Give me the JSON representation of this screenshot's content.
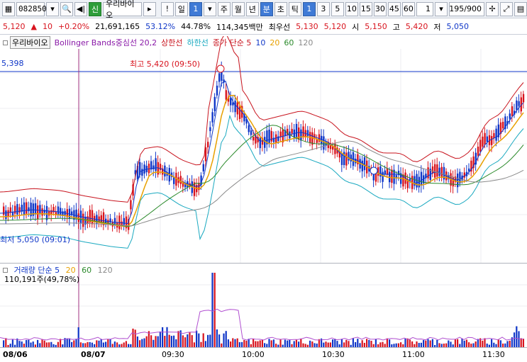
{
  "toolbar": {
    "code": "082850",
    "badge": "신",
    "name": "우리바이오",
    "period_buttons": [
      "일",
      "1",
      "주",
      "월",
      "년",
      "분",
      "초",
      "틱"
    ],
    "interval_buttons": [
      "1",
      "3",
      "5",
      "10",
      "15",
      "30",
      "45",
      "60"
    ],
    "count_value": "1",
    "page_value": "195/900"
  },
  "quote": {
    "price": "5,120",
    "change_icon": "up-triangle",
    "change": "10",
    "rate": "+0.20%",
    "volume": "21,691,165",
    "pct1": "53.12%",
    "pct2": "44.78%",
    "amount": "114,345백만",
    "best_label": "최우선",
    "ask": "5,130",
    "bid": "5,120",
    "open_label": "시",
    "open": "5,150",
    "high_label": "고",
    "high": "5,420",
    "low_label": "저",
    "low": "5,050"
  },
  "legend": {
    "name": "우리바이오",
    "bb": "Bollinger Bands중심선 20,2",
    "upper": "상한선",
    "lower": "하한선",
    "close_ma": "종가 단순 5",
    "p10": "10",
    "p20": "20",
    "p60": "60",
    "p120": "120"
  },
  "price_level": "5,398",
  "high_annotation": "최고 5,420 (09:50)",
  "low_annotation": "최저 5,050 (09:01)",
  "vol_legend": {
    "title": "거래량 단순 5",
    "p20": "20",
    "p60": "60",
    "p120": "120",
    "value": "110,191주(49,78%)"
  },
  "time_axis": [
    "08/06",
    "08/07",
    "09:30",
    "10:00",
    "10:30",
    "11:00",
    "11:30"
  ],
  "colors": {
    "up": "#d8141e",
    "down": "#1037c8",
    "ma5": "#d8141e",
    "ma10": "#1037c8",
    "ma20": "#e8a000",
    "ma60": "#2b8a2b",
    "ma120": "#8a8a8a",
    "bb_upper": "#c8141e",
    "bb_lower": "#1aa9c0"
  }
}
